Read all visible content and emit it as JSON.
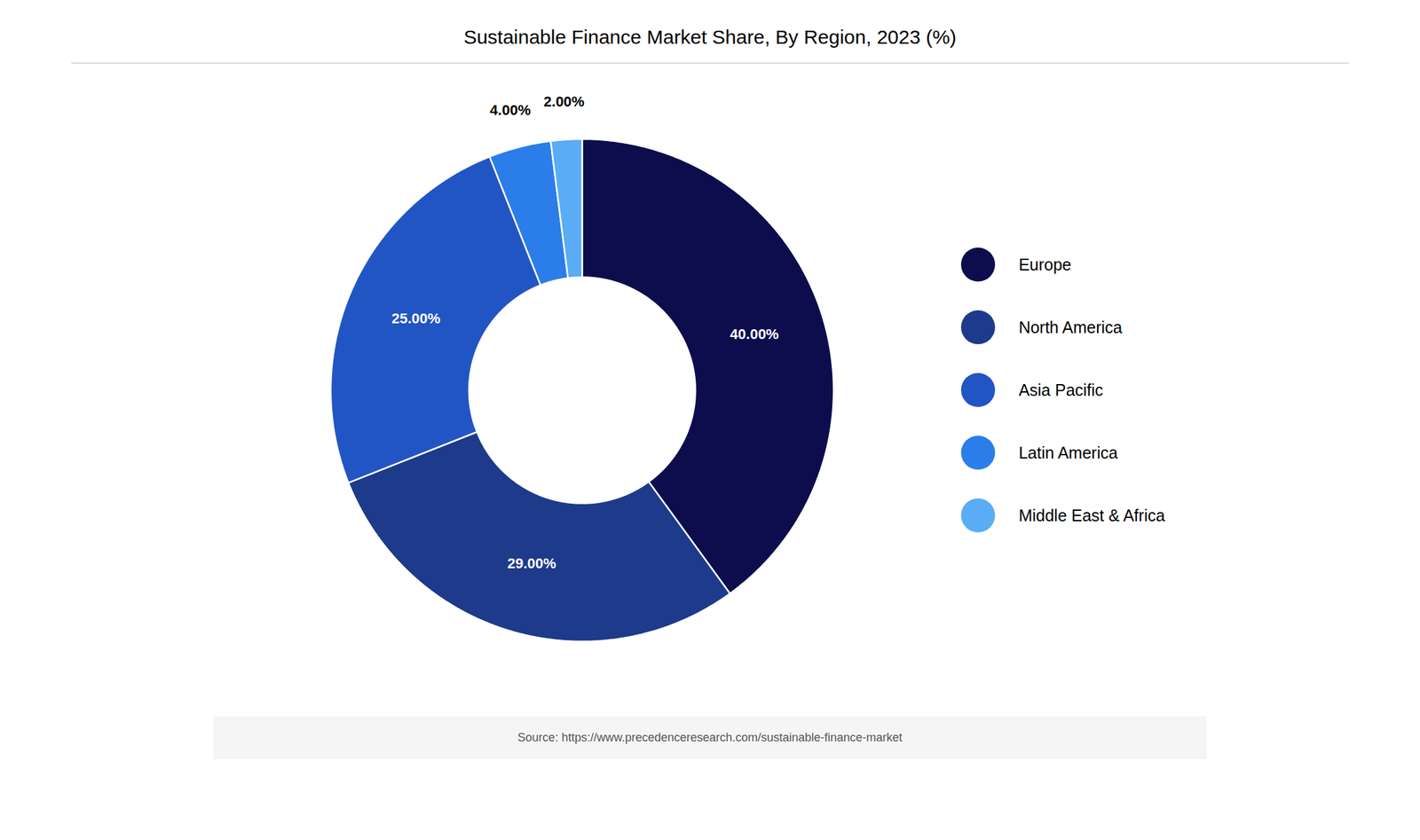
{
  "chart_data": {
    "type": "pie",
    "title": "Sustainable Finance Market Share, By Region, 2023 (%)",
    "categories": [
      "Europe",
      "North America",
      "Asia Pacific",
      "Latin America",
      "Middle East & Africa"
    ],
    "values": [
      40,
      29,
      25,
      4,
      2
    ],
    "value_labels": [
      "40.00%",
      "29.00%",
      "25.00%",
      "4.00%",
      "2.00%"
    ],
    "colors": [
      "#0d0d4d",
      "#1e3a8a",
      "#2255c4",
      "#2b7de9",
      "#5aacf5"
    ],
    "data_labels": true,
    "legend": "right",
    "annotations": [
      "Source: https://www.precedenceresearch.com/sustainable-finance-market"
    ]
  }
}
